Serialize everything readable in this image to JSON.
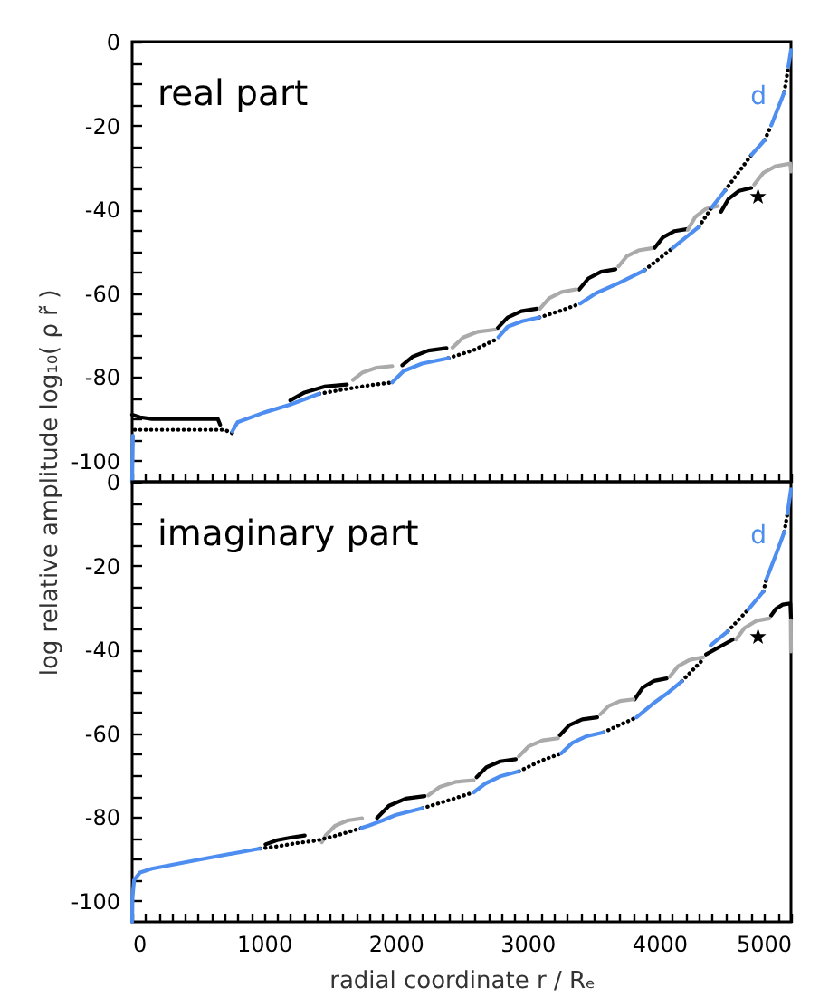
{
  "chart_data": [
    {
      "type": "line",
      "annotations": [
        "real part"
      ],
      "xlim": [
        0,
        5000
      ],
      "ylim": [
        -105,
        0
      ],
      "tick_labels": "y",
      "xticks": [
        0,
        {
          "value": 100,
          "label": null
        },
        {
          "value": 200,
          "label": null
        },
        {
          "value": 300,
          "label": null
        },
        {
          "value": 400,
          "label": null
        },
        {
          "value": 500,
          "label": null
        },
        {
          "value": 600,
          "label": null
        },
        {
          "value": 700,
          "label": null
        },
        {
          "value": 800,
          "label": null
        },
        {
          "value": 900,
          "label": null
        },
        1000,
        {
          "value": 1100,
          "label": null
        },
        {
          "value": 1200,
          "label": null
        },
        {
          "value": 1300,
          "label": null
        },
        {
          "value": 1400,
          "label": null
        },
        {
          "value": 1500,
          "label": null
        },
        {
          "value": 1600,
          "label": null
        },
        {
          "value": 1700,
          "label": null
        },
        {
          "value": 1800,
          "label": null
        },
        {
          "value": 1900,
          "label": null
        },
        2000,
        {
          "value": 2100,
          "label": null
        },
        {
          "value": 2200,
          "label": null
        },
        {
          "value": 2300,
          "label": null
        },
        {
          "value": 2400,
          "label": null
        },
        {
          "value": 2500,
          "label": null
        },
        {
          "value": 2600,
          "label": null
        },
        {
          "value": 2700,
          "label": null
        },
        {
          "value": 2800,
          "label": null
        },
        {
          "value": 2900,
          "label": null
        },
        3000,
        {
          "value": 3100,
          "label": null
        },
        {
          "value": 3200,
          "label": null
        },
        {
          "value": 3300,
          "label": null
        },
        {
          "value": 3400,
          "label": null
        },
        {
          "value": 3500,
          "label": null
        },
        {
          "value": 3600,
          "label": null
        },
        {
          "value": 3700,
          "label": null
        },
        {
          "value": 3800,
          "label": null
        },
        {
          "value": 3900,
          "label": null
        },
        4000,
        {
          "value": 4100,
          "label": null
        },
        {
          "value": 4200,
          "label": null
        },
        {
          "value": 4300,
          "label": null
        },
        {
          "value": 4400,
          "label": null
        },
        {
          "value": 4500,
          "label": null
        },
        {
          "value": 4600,
          "label": null
        },
        {
          "value": 4700,
          "label": null
        },
        {
          "value": 4800,
          "label": null
        },
        {
          "value": 4900,
          "label": null
        },
        5000
      ],
      "yticks": [
        -100,
        {
          "value": -95,
          "label": null
        },
        {
          "value": -90,
          "label": null
        },
        {
          "value": -85,
          "label": null
        },
        -80,
        {
          "value": -75,
          "label": null
        },
        {
          "value": -70,
          "label": null
        },
        {
          "value": -65,
          "label": null
        },
        -60,
        {
          "value": -55,
          "label": null
        },
        {
          "value": -50,
          "label": null
        },
        {
          "value": -45,
          "label": null
        },
        -40,
        {
          "value": -35,
          "label": null
        },
        {
          "value": -30,
          "label": null
        },
        {
          "value": -25,
          "label": null
        },
        -20,
        {
          "value": -15,
          "label": null
        },
        {
          "value": -10,
          "label": null
        },
        {
          "value": -5,
          "label": null
        },
        0
      ],
      "series": [
        {
          "color": "#000000",
          "x": [
            0,
            60,
            150,
            400,
            650,
            668,
            null,
            1200,
            1308,
            1458,
            1630,
            null,
            2050,
            2127,
            2248,
            2386,
            null,
            2775,
            2849,
            2953,
            3072,
            null,
            3393,
            3462,
            3558,
            3668,
            null,
            3965,
            4028,
            4116,
            4217,
            null,
            4469,
            4526,
            4606,
            4698
          ],
          "values": [
            -89,
            -89.6,
            -90,
            -90,
            -90,
            -91.4,
            null,
            -85.6,
            -83.7,
            -82.3,
            -81.8,
            null,
            -77.2,
            -75.2,
            -73.7,
            -73.1,
            null,
            -68.3,
            -65.8,
            -64.3,
            -63.7,
            null,
            -59.1,
            -56.5,
            -54.9,
            -54.3,
            null,
            -49.2,
            -46.7,
            -45.2,
            -44.7,
            null,
            -40.6,
            -37.5,
            -35.6,
            -34.9
          ]
        },
        {
          "color": "#aaaaaa",
          "x": [
            1676,
            1750,
            1855,
            1974,
            null,
            2431,
            2511,
            2624,
            2752,
            null,
            3095,
            3164,
            3260,
            3370,
            null,
            3691,
            3754,
            3842,
            3942,
            null,
            4217,
            4274,
            4354,
            4446,
            null,
            4721,
            4790,
            4885,
            4995,
            5000
          ],
          "values": [
            -80.7,
            -78.9,
            -77.8,
            -77.4,
            null,
            -73,
            -70.6,
            -69.2,
            -68.7,
            null,
            -63.7,
            -61.2,
            -59.7,
            -59.1,
            null,
            -53.6,
            -51.2,
            -49.8,
            -49.3,
            null,
            -44.9,
            -41.8,
            -39.9,
            -39.2,
            null,
            -34.1,
            -31.3,
            -29.7,
            -29.1,
            -31
          ]
        },
        {
          "color": "#000000",
          "line_style": "dotted",
          "x": [
            20,
            700,
            760,
            null,
            1420,
            1600,
            1800,
            1974,
            null,
            2400,
            2590,
            2780,
            null,
            3090,
            3250,
            3400,
            null,
            3890,
            4100,
            null,
            4300,
            4400,
            null,
            4500,
            4700,
            null,
            4800,
            4850,
            null,
            4950,
            4980
          ],
          "values": [
            -92.6,
            -92.6,
            -93.4,
            null,
            -84,
            -83,
            -82,
            -81.3,
            null,
            -75.5,
            -73.6,
            -70.8,
            null,
            -65.8,
            -64.2,
            -62.5,
            null,
            -54.5,
            -49.3,
            null,
            -44.2,
            -39.5,
            null,
            -35.5,
            -27,
            null,
            -23.5,
            -20,
            null,
            -12,
            -6
          ]
        },
        {
          "name": "d",
          "color": "#4d8ef0",
          "x": [
            0,
            6,
            null,
            760,
            800,
            1000,
            1200,
            1420,
            null,
            1974,
            2060,
            2200,
            2400,
            null,
            2780,
            2850,
            2960,
            3090,
            null,
            3400,
            3520,
            3700,
            3890,
            null,
            4100,
            4300,
            null,
            4400,
            4500,
            null,
            4700,
            4800,
            null,
            4850,
            4950,
            null,
            4980,
            5000
          ],
          "values": [
            -105,
            -94,
            null,
            -93,
            -90.8,
            -88.5,
            -86.6,
            -84,
            null,
            -81.3,
            -78.6,
            -76.8,
            -75.5,
            null,
            -70.5,
            -68,
            -66.7,
            -65.8,
            null,
            -62.5,
            -60,
            -57.5,
            -54.5,
            null,
            -49.3,
            -44.2,
            null,
            -39.5,
            -35.5,
            null,
            -27,
            -23.5,
            null,
            -20,
            -12,
            null,
            -6,
            -2
          ]
        },
        {
          "type": "scatter",
          "marker": "star",
          "color": "#000000",
          "x": [
            4750
          ],
          "values": [
            -37
          ]
        }
      ]
    },
    {
      "type": "line",
      "annotations": [
        "imaginary part"
      ],
      "xlabel": "radial coordinate    r / Rₑ",
      "ylabel": "log relative amplitude   log₁₀( ρ r̃ )",
      "xlim": [
        0,
        5000
      ],
      "ylim": [
        -105,
        0
      ],
      "xticks": [
        0,
        {
          "value": 100,
          "label": null
        },
        {
          "value": 200,
          "label": null
        },
        {
          "value": 300,
          "label": null
        },
        {
          "value": 400,
          "label": null
        },
        {
          "value": 500,
          "label": null
        },
        {
          "value": 600,
          "label": null
        },
        {
          "value": 700,
          "label": null
        },
        {
          "value": 800,
          "label": null
        },
        {
          "value": 900,
          "label": null
        },
        1000,
        {
          "value": 1100,
          "label": null
        },
        {
          "value": 1200,
          "label": null
        },
        {
          "value": 1300,
          "label": null
        },
        {
          "value": 1400,
          "label": null
        },
        {
          "value": 1500,
          "label": null
        },
        {
          "value": 1600,
          "label": null
        },
        {
          "value": 1700,
          "label": null
        },
        {
          "value": 1800,
          "label": null
        },
        {
          "value": 1900,
          "label": null
        },
        2000,
        {
          "value": 2100,
          "label": null
        },
        {
          "value": 2200,
          "label": null
        },
        {
          "value": 2300,
          "label": null
        },
        {
          "value": 2400,
          "label": null
        },
        {
          "value": 2500,
          "label": null
        },
        {
          "value": 2600,
          "label": null
        },
        {
          "value": 2700,
          "label": null
        },
        {
          "value": 2800,
          "label": null
        },
        {
          "value": 2900,
          "label": null
        },
        3000,
        {
          "value": 3100,
          "label": null
        },
        {
          "value": 3200,
          "label": null
        },
        {
          "value": 3300,
          "label": null
        },
        {
          "value": 3400,
          "label": null
        },
        {
          "value": 3500,
          "label": null
        },
        {
          "value": 3600,
          "label": null
        },
        {
          "value": 3700,
          "label": null
        },
        {
          "value": 3800,
          "label": null
        },
        {
          "value": 3900,
          "label": null
        },
        4000,
        {
          "value": 4100,
          "label": null
        },
        {
          "value": 4200,
          "label": null
        },
        {
          "value": 4300,
          "label": null
        },
        {
          "value": 4400,
          "label": null
        },
        {
          "value": 4500,
          "label": null
        },
        {
          "value": 4600,
          "label": null
        },
        {
          "value": 4700,
          "label": null
        },
        {
          "value": 4800,
          "label": null
        },
        {
          "value": 4900,
          "label": null
        },
        5000
      ],
      "yticks": [
        -100,
        {
          "value": -95,
          "label": null
        },
        {
          "value": -90,
          "label": null
        },
        {
          "value": -85,
          "label": null
        },
        -80,
        {
          "value": -75,
          "label": null
        },
        {
          "value": -70,
          "label": null
        },
        {
          "value": -65,
          "label": null
        },
        -60,
        {
          "value": -55,
          "label": null
        },
        {
          "value": -50,
          "label": null
        },
        {
          "value": -45,
          "label": null
        },
        -40,
        {
          "value": -35,
          "label": null
        },
        {
          "value": -30,
          "label": null
        },
        {
          "value": -25,
          "label": null
        },
        -20,
        {
          "value": -15,
          "label": null
        },
        {
          "value": -10,
          "label": null
        },
        {
          "value": -5,
          "label": null
        },
        0
      ],
      "series": [
        {
          "color": "#000000",
          "x": [
            1012,
            1100,
            1200,
            1310,
            null,
            1859,
            1949,
            2076,
            2220,
            null,
            2614,
            2689,
            2793,
            2912,
            null,
            3246,
            3317,
            3416,
            3530,
            null,
            3814,
            3875,
            3960,
            4057,
            null,
            4355,
            4561,
            null,
            4849,
            4886,
            4937,
            4995,
            5000
          ],
          "values": [
            -86.5,
            -85.5,
            -84.9,
            -84.4,
            null,
            -80.2,
            -77.3,
            -75.6,
            -75,
            null,
            -70.5,
            -68.1,
            -66.7,
            -66.2,
            null,
            -60.5,
            -58.1,
            -56.7,
            -56.2,
            null,
            -51.9,
            -49.1,
            -47.5,
            -46.9,
            null,
            -41.2,
            -37.6,
            null,
            -31.9,
            -30.3,
            -29.3,
            -29,
            -32.6
          ]
        },
        {
          "color": "#aaaaaa",
          "x": [
            1440,
            1470,
            1539,
            1635,
            1745,
            null,
            2248,
            2334,
            2454,
            2592,
            null,
            2935,
            3010,
            3114,
            3233,
            null,
            3553,
            3616,
            3704,
            3805,
            null,
            4080,
            4143,
            4231,
            4332,
            null,
            4584,
            4647,
            4735,
            4836,
            null,
            4998,
            5000
          ],
          "values": [
            -86,
            -84.3,
            -82.1,
            -80.8,
            -80.3,
            null,
            -74.8,
            -72.8,
            -71.6,
            -71.2,
            null,
            -65.5,
            -63.1,
            -61.7,
            -61.2,
            null,
            -55.5,
            -53.5,
            -52.3,
            -51.9,
            null,
            -46.5,
            -44,
            -42.5,
            -41.9,
            null,
            -37.6,
            -34.9,
            -33.2,
            -32.6,
            null,
            -33,
            -40.5
          ]
        },
        {
          "color": "#000000",
          "line_style": "dotted",
          "x": [
            970,
            1100,
            1250,
            1400,
            1550,
            1740,
            null,
            2202,
            2400,
            2592,
            null,
            2935,
            3100,
            3256,
            null,
            3576,
            3828,
            null,
            4171,
            4320,
            null,
            4520,
            4675,
            null,
            4790,
            4813,
            null,
            4950,
            4973
          ],
          "values": [
            -87.5,
            -87,
            -86.2,
            -85.6,
            -84.4,
            -82.6,
            null,
            -77.9,
            -76,
            -74.1,
            null,
            -69.1,
            -66.6,
            -64.8,
            null,
            -59.8,
            -56.2,
            null,
            -47.6,
            -42.8,
            null,
            -35.7,
            -30.5,
            null,
            -26.2,
            -23.3,
            null,
            -11.9,
            -7.6
          ]
        },
        {
          "name": "d",
          "color": "#4d8ef0",
          "x": [
            0,
            3,
            15,
            60,
            150,
            500,
            970,
            null,
            1740,
            1800,
            1900,
            2000,
            2202,
            null,
            2592,
            2680,
            2800,
            2935,
            null,
            3256,
            3340,
            3450,
            3576,
            null,
            3828,
            3950,
            4060,
            4171,
            null,
            4390,
            4520,
            null,
            4675,
            4790,
            null,
            4813,
            4890,
            4950,
            null,
            4973,
            5000
          ],
          "values": [
            -105,
            -99,
            -95,
            -93.2,
            -92.3,
            -90.2,
            -87.5,
            null,
            -82.6,
            -82,
            -80.8,
            -79.5,
            -77.9,
            null,
            -74.1,
            -72,
            -70.2,
            -69.1,
            null,
            -64.8,
            -62.3,
            -60.7,
            -59.8,
            null,
            -56.2,
            -53,
            -50.5,
            -47.6,
            null,
            -39,
            -35.7,
            null,
            -30.5,
            -26.2,
            null,
            -23.3,
            -17,
            -11.9,
            null,
            -7.6,
            -1.8
          ]
        },
        {
          "type": "scatter",
          "marker": "star",
          "color": "#000000",
          "x": [
            4750
          ],
          "values": [
            -37
          ]
        }
      ]
    }
  ]
}
